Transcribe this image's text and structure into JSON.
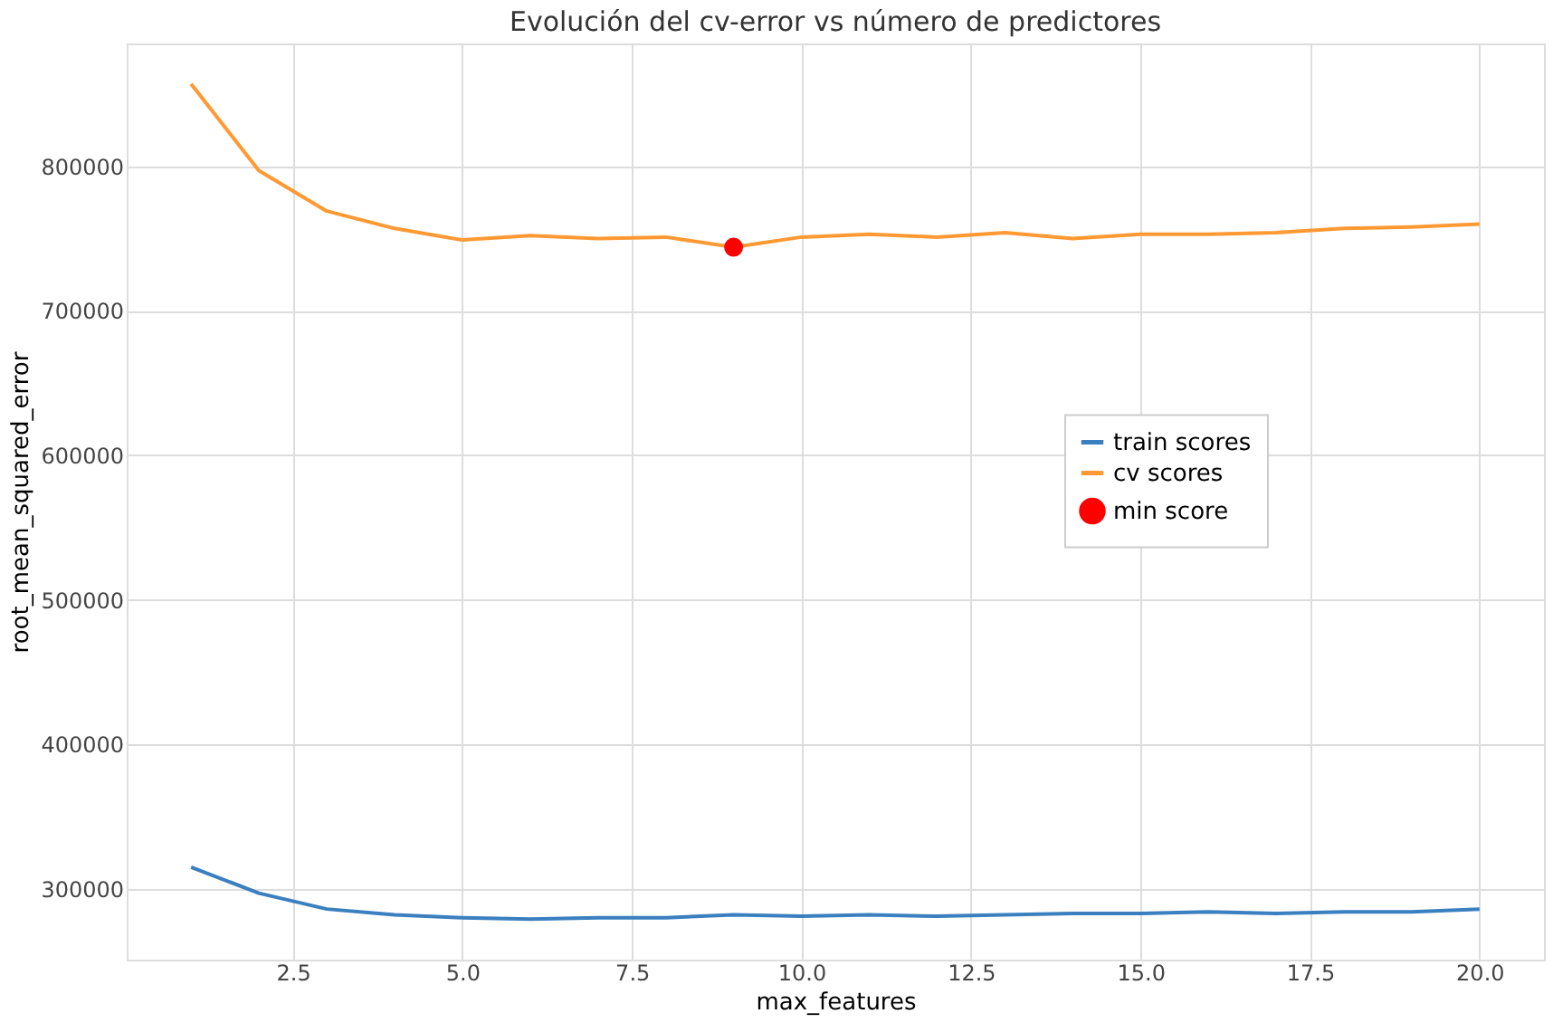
{
  "chart_data": {
    "type": "line",
    "title": "Evolución del cv-error vs número de predictores",
    "xlabel": "max_features",
    "ylabel": "root_mean_squared_error",
    "x": [
      1,
      2,
      3,
      4,
      5,
      6,
      7,
      8,
      9,
      10,
      11,
      12,
      13,
      14,
      15,
      16,
      17,
      18,
      19,
      20
    ],
    "series": [
      {
        "name": "train scores",
        "color": "#3a7fc0",
        "values": [
          315000,
          297000,
          286000,
          282000,
          280000,
          279000,
          280000,
          280000,
          282000,
          281000,
          282000,
          281000,
          282000,
          283000,
          283000,
          284000,
          283000,
          284000,
          284000,
          286000
        ]
      },
      {
        "name": "cv scores",
        "color": "#ff9933",
        "values": [
          857000,
          797000,
          769000,
          757000,
          749000,
          752000,
          750000,
          751000,
          744000,
          751000,
          753000,
          751000,
          754000,
          750000,
          753000,
          753000,
          754000,
          757000,
          758000,
          760000
        ]
      },
      {
        "name": "min score",
        "color": "#ff0000",
        "type": "scatter",
        "marker": "circle",
        "x": [
          9
        ],
        "values": [
          744000
        ]
      }
    ],
    "xlim": [
      0.05,
      20.95
    ],
    "xticks": [
      {
        "value": 2.5,
        "label": "2.5"
      },
      {
        "value": 5,
        "label": "5.0"
      },
      {
        "value": 7.5,
        "label": "7.5"
      },
      {
        "value": 10,
        "label": "10.0"
      },
      {
        "value": 12.5,
        "label": "12.5"
      },
      {
        "value": 15,
        "label": "15.0"
      },
      {
        "value": 17.5,
        "label": "17.5"
      },
      {
        "value": 20,
        "label": "20.0"
      }
    ],
    "ylim": [
      251000,
      885000
    ],
    "yticks": [
      300000,
      400000,
      500000,
      600000,
      700000,
      800000
    ],
    "grid": true,
    "legend": "right"
  }
}
